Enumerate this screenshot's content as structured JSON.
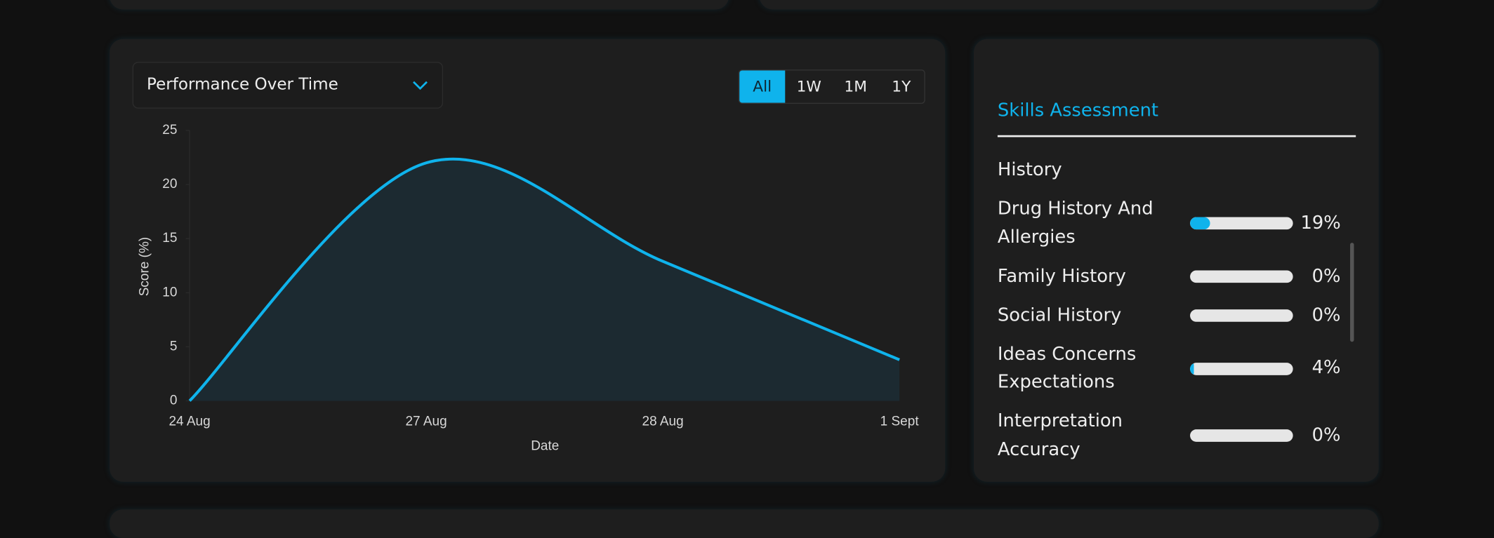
{
  "chart_data": {
    "type": "line",
    "title": "Performance Over Time",
    "x_label": "Date",
    "y_label": "Score (%)",
    "categories": [
      "24 Aug",
      "27 Aug",
      "28 Aug",
      "1 Sept"
    ],
    "values": [
      0,
      22,
      12.9,
      3.8
    ],
    "color": "#0fb3ec",
    "ylim": [
      0,
      25
    ],
    "yticks": [
      0,
      5,
      10,
      15,
      20,
      25
    ],
    "area": true
  },
  "controls": {
    "range_buttons": [
      "All",
      "1W",
      "1M",
      "1Y"
    ],
    "active": "All"
  },
  "skills": {
    "title": "Skills Assessment",
    "clipped_text": "History",
    "items": [
      {
        "name": "Drug History And Allergies",
        "value": 19,
        "value_label": "19%"
      },
      {
        "name": "Family History",
        "value": 0,
        "value_label": "0%"
      },
      {
        "name": "Social History",
        "value": 0,
        "value_label": "0%"
      },
      {
        "name": "Ideas Concerns Expectations",
        "value": 4,
        "value_label": "4%"
      },
      {
        "name": "Interpretation Accuracy",
        "value": 0,
        "value_label": "0%"
      }
    ]
  }
}
